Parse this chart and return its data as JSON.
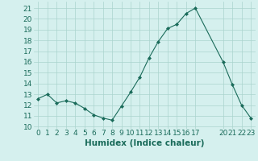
{
  "x": [
    0,
    1,
    2,
    3,
    4,
    5,
    6,
    7,
    8,
    9,
    10,
    11,
    12,
    13,
    14,
    15,
    16,
    17,
    20,
    21,
    22,
    23
  ],
  "y": [
    12.6,
    13.0,
    12.2,
    12.4,
    12.2,
    11.7,
    11.1,
    10.8,
    10.6,
    11.9,
    13.2,
    14.6,
    16.4,
    17.9,
    19.1,
    19.5,
    20.5,
    21.0,
    16.0,
    13.9,
    12.0,
    10.8
  ],
  "line_color": "#1a6b5a",
  "marker": "D",
  "marker_size": 2.0,
  "bg_color": "#d5f0ee",
  "grid_color": "#aad4ce",
  "xlabel": "Humidex (Indice chaleur)",
  "xticks": [
    0,
    1,
    2,
    3,
    4,
    5,
    6,
    7,
    8,
    9,
    10,
    11,
    12,
    13,
    14,
    15,
    16,
    17,
    20,
    21,
    22,
    23
  ],
  "yticks": [
    10,
    11,
    12,
    13,
    14,
    15,
    16,
    17,
    18,
    19,
    20,
    21
  ],
  "ylim": [
    9.8,
    21.6
  ],
  "xlim": [
    -0.5,
    23.5
  ],
  "tick_color": "#1a6b5a",
  "label_color": "#1a6b5a",
  "xlabel_fontsize": 7.5,
  "tick_fontsize": 6.5
}
